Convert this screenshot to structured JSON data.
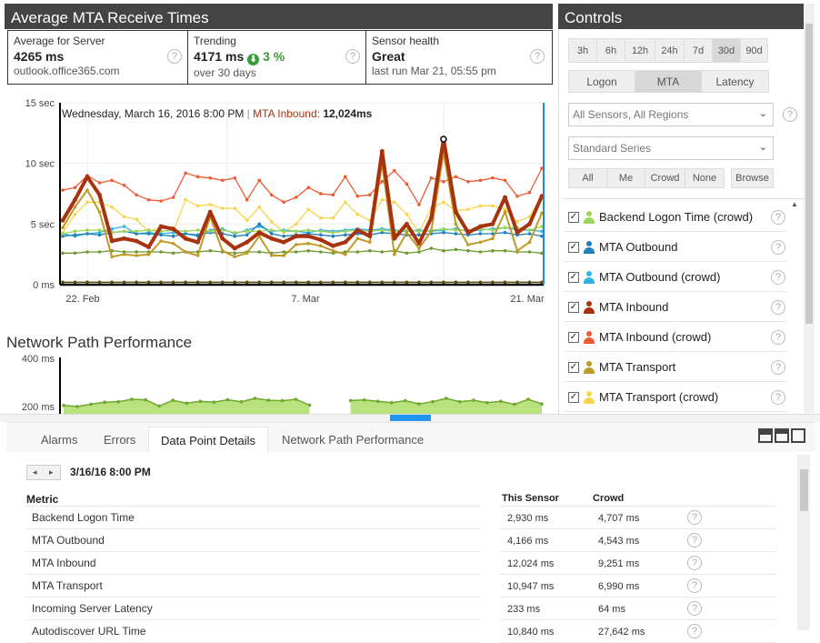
{
  "mta_panel": {
    "title": "Average MTA Receive Times",
    "stats": [
      {
        "title": "Average for Server",
        "value": "4265 ms",
        "sub": "outlook.office365.com"
      },
      {
        "title": "Trending",
        "value": "4171 ms",
        "trend": "3 %",
        "sub": "over 30 days"
      },
      {
        "title": "Sensor health",
        "value": "Great",
        "sub": "last run Mar 21, 05:55 pm"
      }
    ],
    "help_glyph": "?"
  },
  "chart_data": [
    {
      "type": "line",
      "title": "",
      "tooltip": {
        "date": "Wednesday, March 16, 2016 8:00 PM",
        "series": "MTA Inbound:",
        "value": "12,024ms"
      },
      "y_ticks": [
        "15 sec",
        "10 sec",
        "5 sec",
        "0 ms"
      ],
      "x_ticks": [
        "22. Feb",
        "7. Mar",
        "21. Mar"
      ],
      "ylim": [
        0,
        15
      ],
      "y_unit": "sec",
      "grid": true,
      "series": [
        {
          "name": "MTA Inbound (crowd)",
          "color": "#ef5a33",
          "values": [
            7.8,
            8.0,
            9.0,
            8.4,
            8.6,
            8.2,
            7.4,
            7.0,
            6.9,
            7.2,
            9.2,
            8.9,
            8.8,
            8.6,
            8.8,
            7.0,
            8.6,
            7.4,
            6.8,
            7.2,
            8.0,
            7.5,
            7.4,
            8.9,
            7.3,
            7.4,
            8.5,
            9.4,
            8.3,
            6.6,
            8.8,
            8.5,
            8.9,
            8.5,
            8.6,
            8.8,
            8.6,
            7.3,
            7.6,
            9.6
          ]
        },
        {
          "name": "MTA Transport (crowd)",
          "color": "#f7d44c",
          "values": [
            4.3,
            5.8,
            6.8,
            6.8,
            6.4,
            5.6,
            5.4,
            4.3,
            4.8,
            4.4,
            7.0,
            6.5,
            6.6,
            6.3,
            6.3,
            5.3,
            6.4,
            5.2,
            4.3,
            5.0,
            6.2,
            5.5,
            5.5,
            6.8,
            5.8,
            5.3,
            7.0,
            6.8,
            5.8,
            4.3,
            6.3,
            6.8,
            6.1,
            6.2,
            6.5,
            6.5,
            6.2,
            5.2,
            5.6,
            7.3
          ]
        },
        {
          "name": "MTA Outbound (crowd)",
          "color": "#2fb5e0",
          "values": [
            4.2,
            4.0,
            4.2,
            4.3,
            4.6,
            4.8,
            4.2,
            4.3,
            4.2,
            4.3,
            4.2,
            4.0,
            4.5,
            4.6,
            4.2,
            4.5,
            4.8,
            4.4,
            4.5,
            4.4,
            4.3,
            4.5,
            4.4,
            4.5,
            4.6,
            4.5,
            4.6,
            4.5,
            4.4,
            4.5,
            4.4,
            4.5,
            4.6,
            4.4,
            4.5,
            4.6,
            4.7,
            4.5,
            4.5,
            4.4
          ]
        },
        {
          "name": "MTA Outbound",
          "color": "#1f7fb8",
          "values": [
            4.0,
            4.1,
            4.2,
            4.1,
            4.3,
            4.4,
            4.2,
            4.2,
            4.1,
            4.0,
            4.2,
            4.1,
            4.3,
            4.2,
            4.0,
            4.1,
            5.0,
            4.2,
            4.0,
            4.1,
            4.2,
            4.1,
            4.0,
            4.1,
            4.2,
            4.1,
            4.3,
            4.2,
            4.1,
            4.1,
            4.2,
            4.3,
            4.2,
            4.1,
            4.2,
            4.2,
            4.3,
            4.1,
            4.2,
            4.0
          ]
        },
        {
          "name": "Backend Logon Time (crowd)",
          "color": "#9bd45a",
          "values": [
            4.2,
            4.4,
            4.5,
            4.5,
            4.3,
            4.4,
            4.4,
            4.5,
            4.4,
            4.5,
            4.4,
            4.5,
            4.4,
            4.5,
            4.3,
            4.4,
            4.4,
            4.5,
            4.4,
            4.4,
            4.5,
            4.4,
            4.3,
            4.4,
            4.5,
            4.4,
            4.5,
            4.4,
            4.5,
            4.4,
            4.5,
            4.6,
            4.5,
            4.5,
            4.6,
            4.5,
            4.7,
            4.7,
            4.5,
            4.8
          ]
        },
        {
          "name": "Backend Logon Time",
          "color": "#6e9a30",
          "values": [
            2.6,
            2.6,
            2.7,
            2.7,
            2.8,
            2.7,
            2.7,
            2.7,
            2.7,
            2.6,
            2.7,
            2.7,
            2.8,
            2.7,
            2.6,
            2.7,
            2.7,
            2.6,
            2.7,
            2.7,
            2.8,
            2.7,
            2.6,
            2.7,
            2.7,
            2.8,
            2.7,
            2.8,
            2.6,
            2.7,
            3.0,
            2.8,
            2.9,
            2.8,
            2.7,
            2.8,
            2.8,
            2.7,
            2.7,
            2.6
          ]
        },
        {
          "name": "MTA Transport",
          "color": "#c09a27",
          "values": [
            4.7,
            6.4,
            7.8,
            6.0,
            2.3,
            2.5,
            2.4,
            2.5,
            3.6,
            3.4,
            2.7,
            2.4,
            5.6,
            2.8,
            2.3,
            2.6,
            4.0,
            2.4,
            2.4,
            3.3,
            3.4,
            3.2,
            2.8,
            2.5,
            3.8,
            3.5,
            10.0,
            2.5,
            4.3,
            3.0,
            4.4,
            10.9,
            5.0,
            3.3,
            3.5,
            3.8,
            6.0,
            2.8,
            3.5,
            5.9
          ]
        },
        {
          "name": "MTA Inbound",
          "color": "#a8310e",
          "values": [
            5.3,
            7.0,
            8.9,
            7.4,
            3.6,
            3.8,
            3.6,
            3.1,
            4.8,
            4.6,
            3.8,
            3.5,
            6.0,
            3.8,
            3.0,
            3.5,
            4.3,
            3.8,
            3.5,
            4.0,
            4.0,
            3.7,
            3.2,
            3.5,
            4.5,
            4.0,
            11.0,
            3.8,
            5.0,
            3.4,
            5.5,
            12.0,
            6.0,
            4.3,
            4.8,
            5.0,
            7.2,
            4.3,
            5.0,
            7.3
          ]
        },
        {
          "name": "Incoming Server Latency",
          "color": "#5a4a10",
          "values": [
            0.2,
            0.2,
            0.2,
            0.2,
            0.2,
            0.2,
            0.2,
            0.2,
            0.2,
            0.2,
            0.2,
            0.2,
            0.2,
            0.2,
            0.2,
            0.2,
            0.2,
            0.2,
            0.2,
            0.2,
            0.2,
            0.2,
            0.2,
            0.2,
            0.2,
            0.2,
            0.2,
            0.2,
            0.2,
            0.2,
            0.2,
            0.2,
            0.2,
            0.2,
            0.2,
            0.2,
            0.2,
            0.2,
            0.2,
            0.2
          ]
        }
      ]
    },
    {
      "type": "area",
      "title": "Network Path Performance",
      "y_ticks": [
        "400 ms",
        "200 ms"
      ],
      "ylim": [
        150,
        400
      ],
      "series": [
        {
          "name": "",
          "color": "#9bd45a",
          "values": [
            205,
            200,
            210,
            218,
            220,
            230,
            228,
            202,
            226,
            214,
            222,
            218,
            228,
            220,
            234,
            226,
            224,
            230,
            206,
            null,
            null,
            225,
            227,
            222,
            216,
            224,
            211,
            220,
            234,
            220,
            226,
            216,
            222,
            209,
            230,
            211
          ]
        }
      ]
    }
  ],
  "controls": {
    "title": "Controls",
    "ranges": [
      "3h",
      "6h",
      "12h",
      "24h",
      "7d",
      "30d",
      "90d"
    ],
    "active_range": "30d",
    "modes": [
      "Logon",
      "MTA",
      "Latency"
    ],
    "active_mode": "MTA",
    "sensor_select": "All Sensors, All Regions",
    "series_select": "Standard Series",
    "filters": [
      "All",
      "Me",
      "Crowd",
      "None"
    ],
    "browse": "Browse",
    "chevron": "⌄",
    "scroll_up": "▲",
    "series_list": [
      {
        "label": "Backend Logon Time (crowd)",
        "color": "#9bd45a"
      },
      {
        "label": "MTA Outbound",
        "color": "#1f7fb8"
      },
      {
        "label": "MTA Outbound (crowd)",
        "color": "#2fb5e0"
      },
      {
        "label": "MTA Inbound",
        "color": "#a8310e"
      },
      {
        "label": "MTA Inbound (crowd)",
        "color": "#ef5a33"
      },
      {
        "label": "MTA Transport",
        "color": "#c09a27"
      },
      {
        "label": "MTA Transport (crowd)",
        "color": "#f7d44c"
      }
    ],
    "check": "✓"
  },
  "details": {
    "tabs": [
      "Alarms",
      "Errors",
      "Data Point Details",
      "Network Path Performance"
    ],
    "active_tab": "Data Point Details",
    "timestamp": "3/16/16 8:00 PM",
    "nav_prev": "◂",
    "nav_next": "▸",
    "headers": {
      "metric": "Metric",
      "this_sensor": "This Sensor",
      "crowd": "Crowd"
    },
    "rows": [
      {
        "metric": "Backend Logon Time",
        "this_sensor": "2,930 ms",
        "crowd": "4,707 ms"
      },
      {
        "metric": "MTA Outbound",
        "this_sensor": "4,166 ms",
        "crowd": "4,543 ms"
      },
      {
        "metric": "MTA Inbound",
        "this_sensor": "12,024 ms",
        "crowd": "9,251 ms"
      },
      {
        "metric": "MTA Transport",
        "this_sensor": "10,947 ms",
        "crowd": "6,990 ms"
      },
      {
        "metric": "Incoming Server Latency",
        "this_sensor": "233 ms",
        "crowd": "64 ms"
      },
      {
        "metric": "Autodiscover URL Time",
        "this_sensor": "10,840 ms",
        "crowd": "27,642 ms"
      }
    ]
  }
}
